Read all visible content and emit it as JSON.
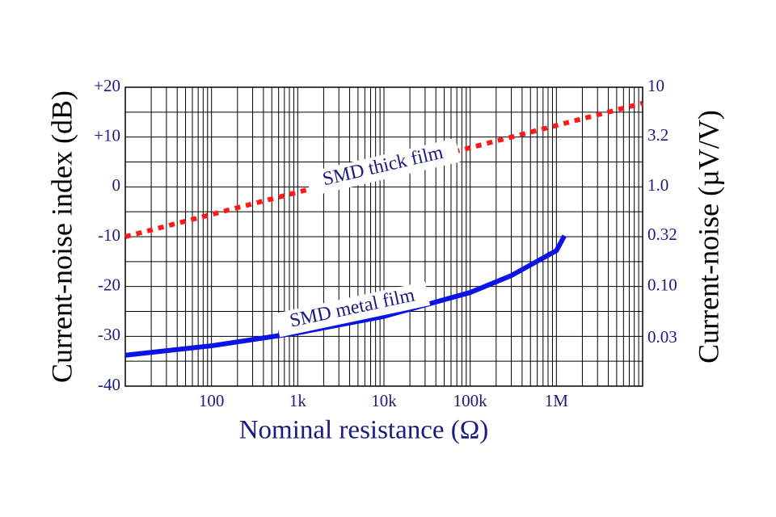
{
  "chart_data": {
    "type": "line",
    "xlabel": "Nominal resistance (Ω)",
    "ylabel": "Current-noise index (dB)",
    "y2label": "Current-noise (µV/V)",
    "xscale": "log",
    "xlim": [
      10,
      10000000
    ],
    "xticks": [
      100,
      {
        "value": 1000,
        "label": "1k"
      },
      {
        "value": 10000,
        "label": "10k"
      },
      {
        "value": 100000,
        "label": "100k"
      },
      {
        "value": 1000000,
        "label": "1M"
      }
    ],
    "ylim": [
      -40,
      20
    ],
    "yticks": [
      {
        "value": 20,
        "label": "+20"
      },
      {
        "value": 10,
        "label": "+10"
      },
      0,
      -10,
      -20,
      -30,
      -40
    ],
    "yminor": [
      15,
      5,
      -5,
      -15,
      -25,
      -35
    ],
    "y2scale": "log",
    "y2lim": [
      0.01,
      10
    ],
    "y2ticks": [
      10,
      3.2,
      {
        "value": 1,
        "label": "1.0"
      },
      0.32,
      {
        "value": 0.1,
        "label": "0.10"
      },
      0.03
    ],
    "grid": true,
    "minor_grid": true,
    "series": [
      {
        "name": "SMD thick film",
        "color": "#ff1a1a",
        "style": "dotted",
        "x": [
          10,
          10000000
        ],
        "values": [
          -10,
          16.8
        ]
      },
      {
        "name": "SMD metal film",
        "color": "#0a14e6",
        "style": "solid",
        "x": [
          10,
          100,
          1000,
          10000,
          100000,
          300000,
          1000000,
          1240000
        ],
        "values": [
          -33.8,
          -31.9,
          -29.3,
          -26,
          -21.2,
          -17.8,
          -12.8,
          -9.8
        ]
      }
    ]
  }
}
